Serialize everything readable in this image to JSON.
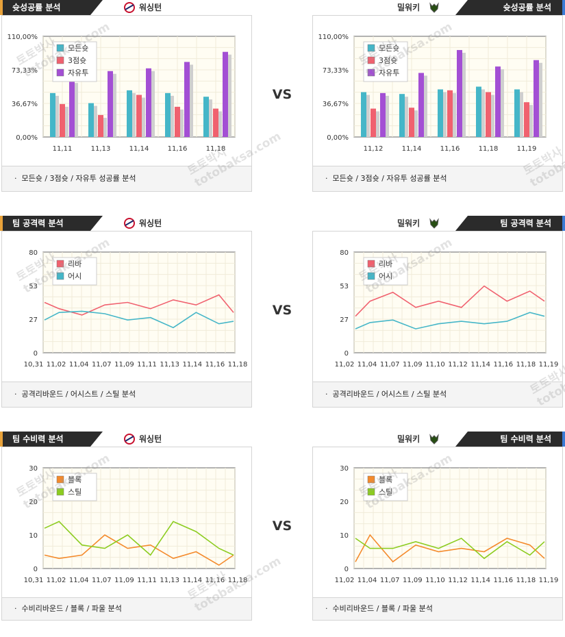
{
  "vs_label": "VS",
  "watermark": {
    "line1": "토토박사",
    "line2": "totobaksa.com"
  },
  "sections": [
    {
      "title": "슛성공률 분석",
      "left_team": "워싱턴",
      "right_team": "밀워키",
      "caption": "모든슛 / 3점슛 / 자유투 성공률 분석"
    },
    {
      "title": "팀 공격력 분석",
      "left_team": "워싱턴",
      "right_team": "밀워키",
      "caption": "공격리바운드 / 어시스트 / 스틸 분석"
    },
    {
      "title": "팀 수비력 분석",
      "left_team": "워싱턴",
      "right_team": "밀워키",
      "caption": "수비리바운드 / 블록 / 파울 분석"
    }
  ],
  "colors": {
    "cyan": "#45b6c8",
    "red": "#f0616f",
    "purple": "#a34fd4",
    "orange": "#f48a2c",
    "green": "#8ccc20"
  },
  "chart_data": [
    {
      "id": "shoot-left",
      "type": "bar",
      "categories": [
        "11,11",
        "11,13",
        "11,14",
        "11,16",
        "11,18"
      ],
      "yticks": [
        "0,00%",
        "36,67%",
        "73,33%",
        "110,00%"
      ],
      "ylim": [
        0,
        110
      ],
      "legend": "top-left",
      "series": [
        {
          "name": "모든슛",
          "color": "#45b6c8",
          "values": [
            48,
            37,
            51,
            48,
            44
          ]
        },
        {
          "name": "3점슛",
          "color": "#f0616f",
          "values": [
            36,
            24,
            46,
            33,
            31
          ]
        },
        {
          "name": "자유투",
          "color": "#a34fd4",
          "values": [
            62,
            72,
            75,
            82,
            93
          ]
        }
      ]
    },
    {
      "id": "shoot-right",
      "type": "bar",
      "categories": [
        "11,12",
        "11,14",
        "11,16",
        "11,18",
        "11,19"
      ],
      "yticks": [
        "0,00%",
        "36,67%",
        "73,33%",
        "110,00%"
      ],
      "ylim": [
        0,
        110
      ],
      "legend": "top-left",
      "series": [
        {
          "name": "모든슛",
          "color": "#45b6c8",
          "values": [
            49,
            47,
            52,
            55,
            52
          ]
        },
        {
          "name": "3점슛",
          "color": "#f0616f",
          "values": [
            31,
            32,
            51,
            49,
            38
          ]
        },
        {
          "name": "자유투",
          "color": "#a34fd4",
          "values": [
            48,
            70,
            95,
            77,
            84
          ]
        }
      ]
    },
    {
      "id": "attack-left",
      "type": "line",
      "categories": [
        "10,31",
        "11,02",
        "11,04",
        "11,07",
        "11,09",
        "11,11",
        "11,13",
        "11,14",
        "11,16",
        "11,18"
      ],
      "yticks": [
        "0",
        "27",
        "53",
        "80"
      ],
      "ylim": [
        0,
        80
      ],
      "legend": "top-left",
      "series": [
        {
          "name": "리바",
          "color": "#f0616f",
          "values": [
            40,
            35,
            30,
            38,
            40,
            35,
            42,
            38,
            46,
            32
          ]
        },
        {
          "name": "어시",
          "color": "#45b6c8",
          "values": [
            26,
            32,
            33,
            31,
            26,
            28,
            20,
            32,
            23,
            25
          ]
        }
      ]
    },
    {
      "id": "attack-right",
      "type": "line",
      "categories": [
        "11,02",
        "11,04",
        "11,07",
        "11,09",
        "11,10",
        "11,12",
        "11,14",
        "11,16",
        "11,18",
        "11,19"
      ],
      "yticks": [
        "0",
        "27",
        "53",
        "80"
      ],
      "ylim": [
        0,
        80
      ],
      "legend": "top-left",
      "series": [
        {
          "name": "리바",
          "color": "#f0616f",
          "values": [
            29,
            41,
            48,
            36,
            41,
            36,
            53,
            41,
            49,
            41
          ]
        },
        {
          "name": "어시",
          "color": "#45b6c8",
          "values": [
            19,
            24,
            26,
            19,
            23,
            25,
            23,
            25,
            32,
            29
          ]
        }
      ]
    },
    {
      "id": "defense-left",
      "type": "line",
      "categories": [
        "10,31",
        "11,02",
        "11,04",
        "11,07",
        "11,09",
        "11,11",
        "11,13",
        "11,14",
        "11,16",
        "11,18"
      ],
      "yticks": [
        "0",
        "10",
        "20",
        "30"
      ],
      "ylim": [
        0,
        30
      ],
      "legend": "top-left",
      "series": [
        {
          "name": "블록",
          "color": "#f48a2c",
          "values": [
            4,
            3,
            4,
            10,
            6,
            7,
            3,
            5,
            1,
            4
          ]
        },
        {
          "name": "스틸",
          "color": "#8ccc20",
          "values": [
            12,
            14,
            7,
            6,
            10,
            4,
            14,
            11,
            6,
            4
          ]
        }
      ]
    },
    {
      "id": "defense-right",
      "type": "line",
      "categories": [
        "11,02",
        "11,04",
        "11,07",
        "11,09",
        "11,10",
        "11,12",
        "11,14",
        "11,16",
        "11,18",
        "11,19"
      ],
      "yticks": [
        "0",
        "10",
        "20",
        "30"
      ],
      "ylim": [
        0,
        30
      ],
      "legend": "top-left",
      "series": [
        {
          "name": "블록",
          "color": "#f48a2c",
          "values": [
            2,
            10,
            2,
            7,
            5,
            6,
            5,
            9,
            7,
            3
          ]
        },
        {
          "name": "스틸",
          "color": "#8ccc20",
          "values": [
            9,
            6,
            6,
            8,
            6,
            9,
            3,
            8,
            4,
            8
          ]
        }
      ]
    }
  ]
}
